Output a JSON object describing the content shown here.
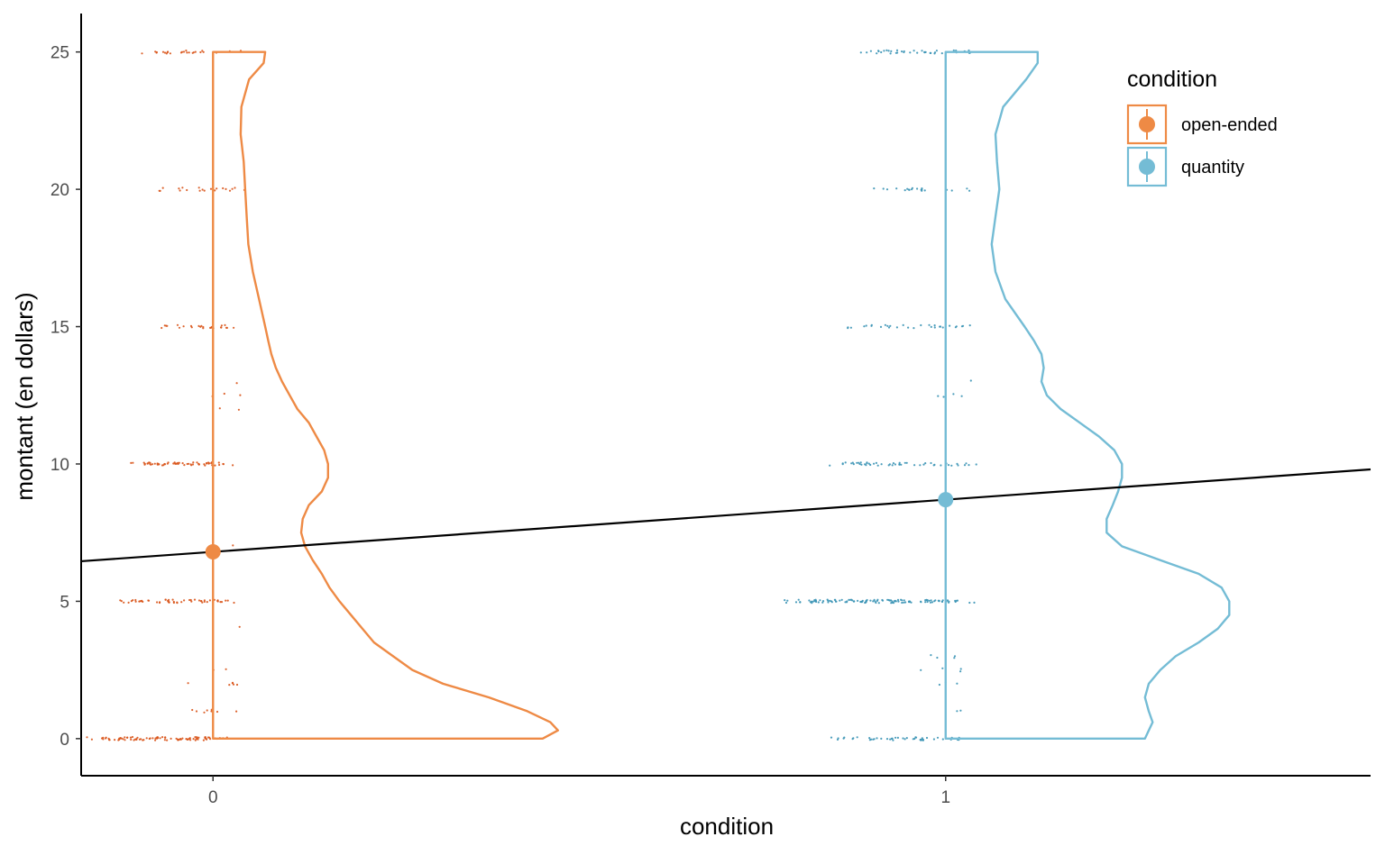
{
  "chart_data": {
    "type": "scatter",
    "title": "",
    "xlabel": "condition",
    "ylabel": "montant (en dollars)",
    "x_ticks": [
      "0",
      "1"
    ],
    "y_ticks": [
      "0",
      "5",
      "10",
      "15",
      "20",
      "25"
    ],
    "xlim": [
      -0.18,
      1.58
    ],
    "ylim": [
      -1.35,
      26.4
    ],
    "grid": false,
    "legend": {
      "title": "condition",
      "position": "top-right",
      "entries": [
        {
          "label": "open-ended",
          "color": "#EE8A45"
        },
        {
          "label": "quantity",
          "color": "#74BCD5"
        }
      ]
    },
    "series": [
      {
        "name": "open-ended",
        "x": 0,
        "color": "#EE8A45",
        "point_color": "#D9541A",
        "mean": 6.8,
        "point_clusters": [
          {
            "y": 0,
            "count": 90,
            "spread": 0.18
          },
          {
            "y": 1,
            "count": 8,
            "spread": 0.04
          },
          {
            "y": 2,
            "count": 6,
            "spread": 0.04
          },
          {
            "y": 2.5,
            "count": 2,
            "spread": 0.01
          },
          {
            "y": 4.1,
            "count": 1,
            "spread": 0.01
          },
          {
            "y": 5,
            "count": 55,
            "spread": 0.14
          },
          {
            "y": 7,
            "count": 1,
            "spread": 0.01
          },
          {
            "y": 10,
            "count": 60,
            "spread": 0.13
          },
          {
            "y": 12,
            "count": 2,
            "spread": 0.02
          },
          {
            "y": 12.5,
            "count": 3,
            "spread": 0.01
          },
          {
            "y": 13,
            "count": 1,
            "spread": 0.01
          },
          {
            "y": 15,
            "count": 25,
            "spread": 0.09
          },
          {
            "y": 20,
            "count": 20,
            "spread": 0.08
          },
          {
            "y": 25,
            "count": 25,
            "spread": 0.11
          }
        ],
        "density": [
          [
            0,
            0.43
          ],
          [
            0.3,
            0.45
          ],
          [
            0.6,
            0.44
          ],
          [
            1,
            0.41
          ],
          [
            1.5,
            0.36
          ],
          [
            2,
            0.3
          ],
          [
            2.5,
            0.26
          ],
          [
            3,
            0.235
          ],
          [
            3.5,
            0.21
          ],
          [
            4,
            0.195
          ],
          [
            4.5,
            0.18
          ],
          [
            5,
            0.165
          ],
          [
            5.5,
            0.152
          ],
          [
            6,
            0.142
          ],
          [
            6.5,
            0.13
          ],
          [
            7,
            0.12
          ],
          [
            7.5,
            0.115
          ],
          [
            8,
            0.117
          ],
          [
            8.5,
            0.125
          ],
          [
            9,
            0.142
          ],
          [
            9.5,
            0.15
          ],
          [
            10,
            0.15
          ],
          [
            10.5,
            0.145
          ],
          [
            11,
            0.135
          ],
          [
            11.5,
            0.125
          ],
          [
            12,
            0.11
          ],
          [
            12.5,
            0.1
          ],
          [
            13,
            0.09
          ],
          [
            13.5,
            0.082
          ],
          [
            14,
            0.076
          ],
          [
            14.5,
            0.072
          ],
          [
            15,
            0.068
          ],
          [
            16,
            0.06
          ],
          [
            17,
            0.052
          ],
          [
            18,
            0.046
          ],
          [
            19,
            0.044
          ],
          [
            20,
            0.042
          ],
          [
            21,
            0.04
          ],
          [
            22,
            0.036
          ],
          [
            23,
            0.037
          ],
          [
            24,
            0.047
          ],
          [
            24.6,
            0.066
          ],
          [
            25,
            0.068
          ]
        ]
      },
      {
        "name": "quantity",
        "x": 1,
        "color": "#74BCD5",
        "point_color": "#3A93B5",
        "mean": 8.7,
        "point_clusters": [
          {
            "y": 0,
            "count": 45,
            "spread": 0.17
          },
          {
            "y": 1,
            "count": 2,
            "spread": 0.02
          },
          {
            "y": 2,
            "count": 3,
            "spread": 0.04
          },
          {
            "y": 2.5,
            "count": 4,
            "spread": 0.04
          },
          {
            "y": 3,
            "count": 4,
            "spread": 0.04
          },
          {
            "y": 5,
            "count": 120,
            "spread": 0.23
          },
          {
            "y": 10,
            "count": 50,
            "spread": 0.16
          },
          {
            "y": 12.5,
            "count": 4,
            "spread": 0.02
          },
          {
            "y": 13,
            "count": 1,
            "spread": 0.01
          },
          {
            "y": 15,
            "count": 30,
            "spread": 0.14
          },
          {
            "y": 20,
            "count": 20,
            "spread": 0.11
          },
          {
            "y": 25,
            "count": 40,
            "spread": 0.13
          }
        ],
        "density": [
          [
            0,
            0.26
          ],
          [
            0.3,
            0.265
          ],
          [
            0.6,
            0.27
          ],
          [
            1,
            0.265
          ],
          [
            1.5,
            0.26
          ],
          [
            2,
            0.265
          ],
          [
            2.5,
            0.28
          ],
          [
            3,
            0.3
          ],
          [
            3.5,
            0.33
          ],
          [
            4,
            0.355
          ],
          [
            4.5,
            0.37
          ],
          [
            5,
            0.37
          ],
          [
            5.5,
            0.36
          ],
          [
            6,
            0.33
          ],
          [
            6.5,
            0.28
          ],
          [
            7,
            0.23
          ],
          [
            7.5,
            0.21
          ],
          [
            8,
            0.21
          ],
          [
            8.5,
            0.218
          ],
          [
            9,
            0.225
          ],
          [
            9.5,
            0.23
          ],
          [
            10,
            0.23
          ],
          [
            10.5,
            0.22
          ],
          [
            11,
            0.2
          ],
          [
            11.5,
            0.175
          ],
          [
            12,
            0.15
          ],
          [
            12.5,
            0.132
          ],
          [
            13,
            0.125
          ],
          [
            13.5,
            0.128
          ],
          [
            14,
            0.125
          ],
          [
            14.5,
            0.115
          ],
          [
            15,
            0.103
          ],
          [
            16,
            0.078
          ],
          [
            17,
            0.065
          ],
          [
            18,
            0.06
          ],
          [
            19,
            0.065
          ],
          [
            20,
            0.07
          ],
          [
            21,
            0.067
          ],
          [
            22,
            0.065
          ],
          [
            23,
            0.075
          ],
          [
            24,
            0.105
          ],
          [
            24.6,
            0.12
          ],
          [
            25,
            0.12
          ]
        ]
      }
    ],
    "regression_line": {
      "color": "#000000",
      "intercept": 6.8,
      "slope": 1.9
    }
  }
}
